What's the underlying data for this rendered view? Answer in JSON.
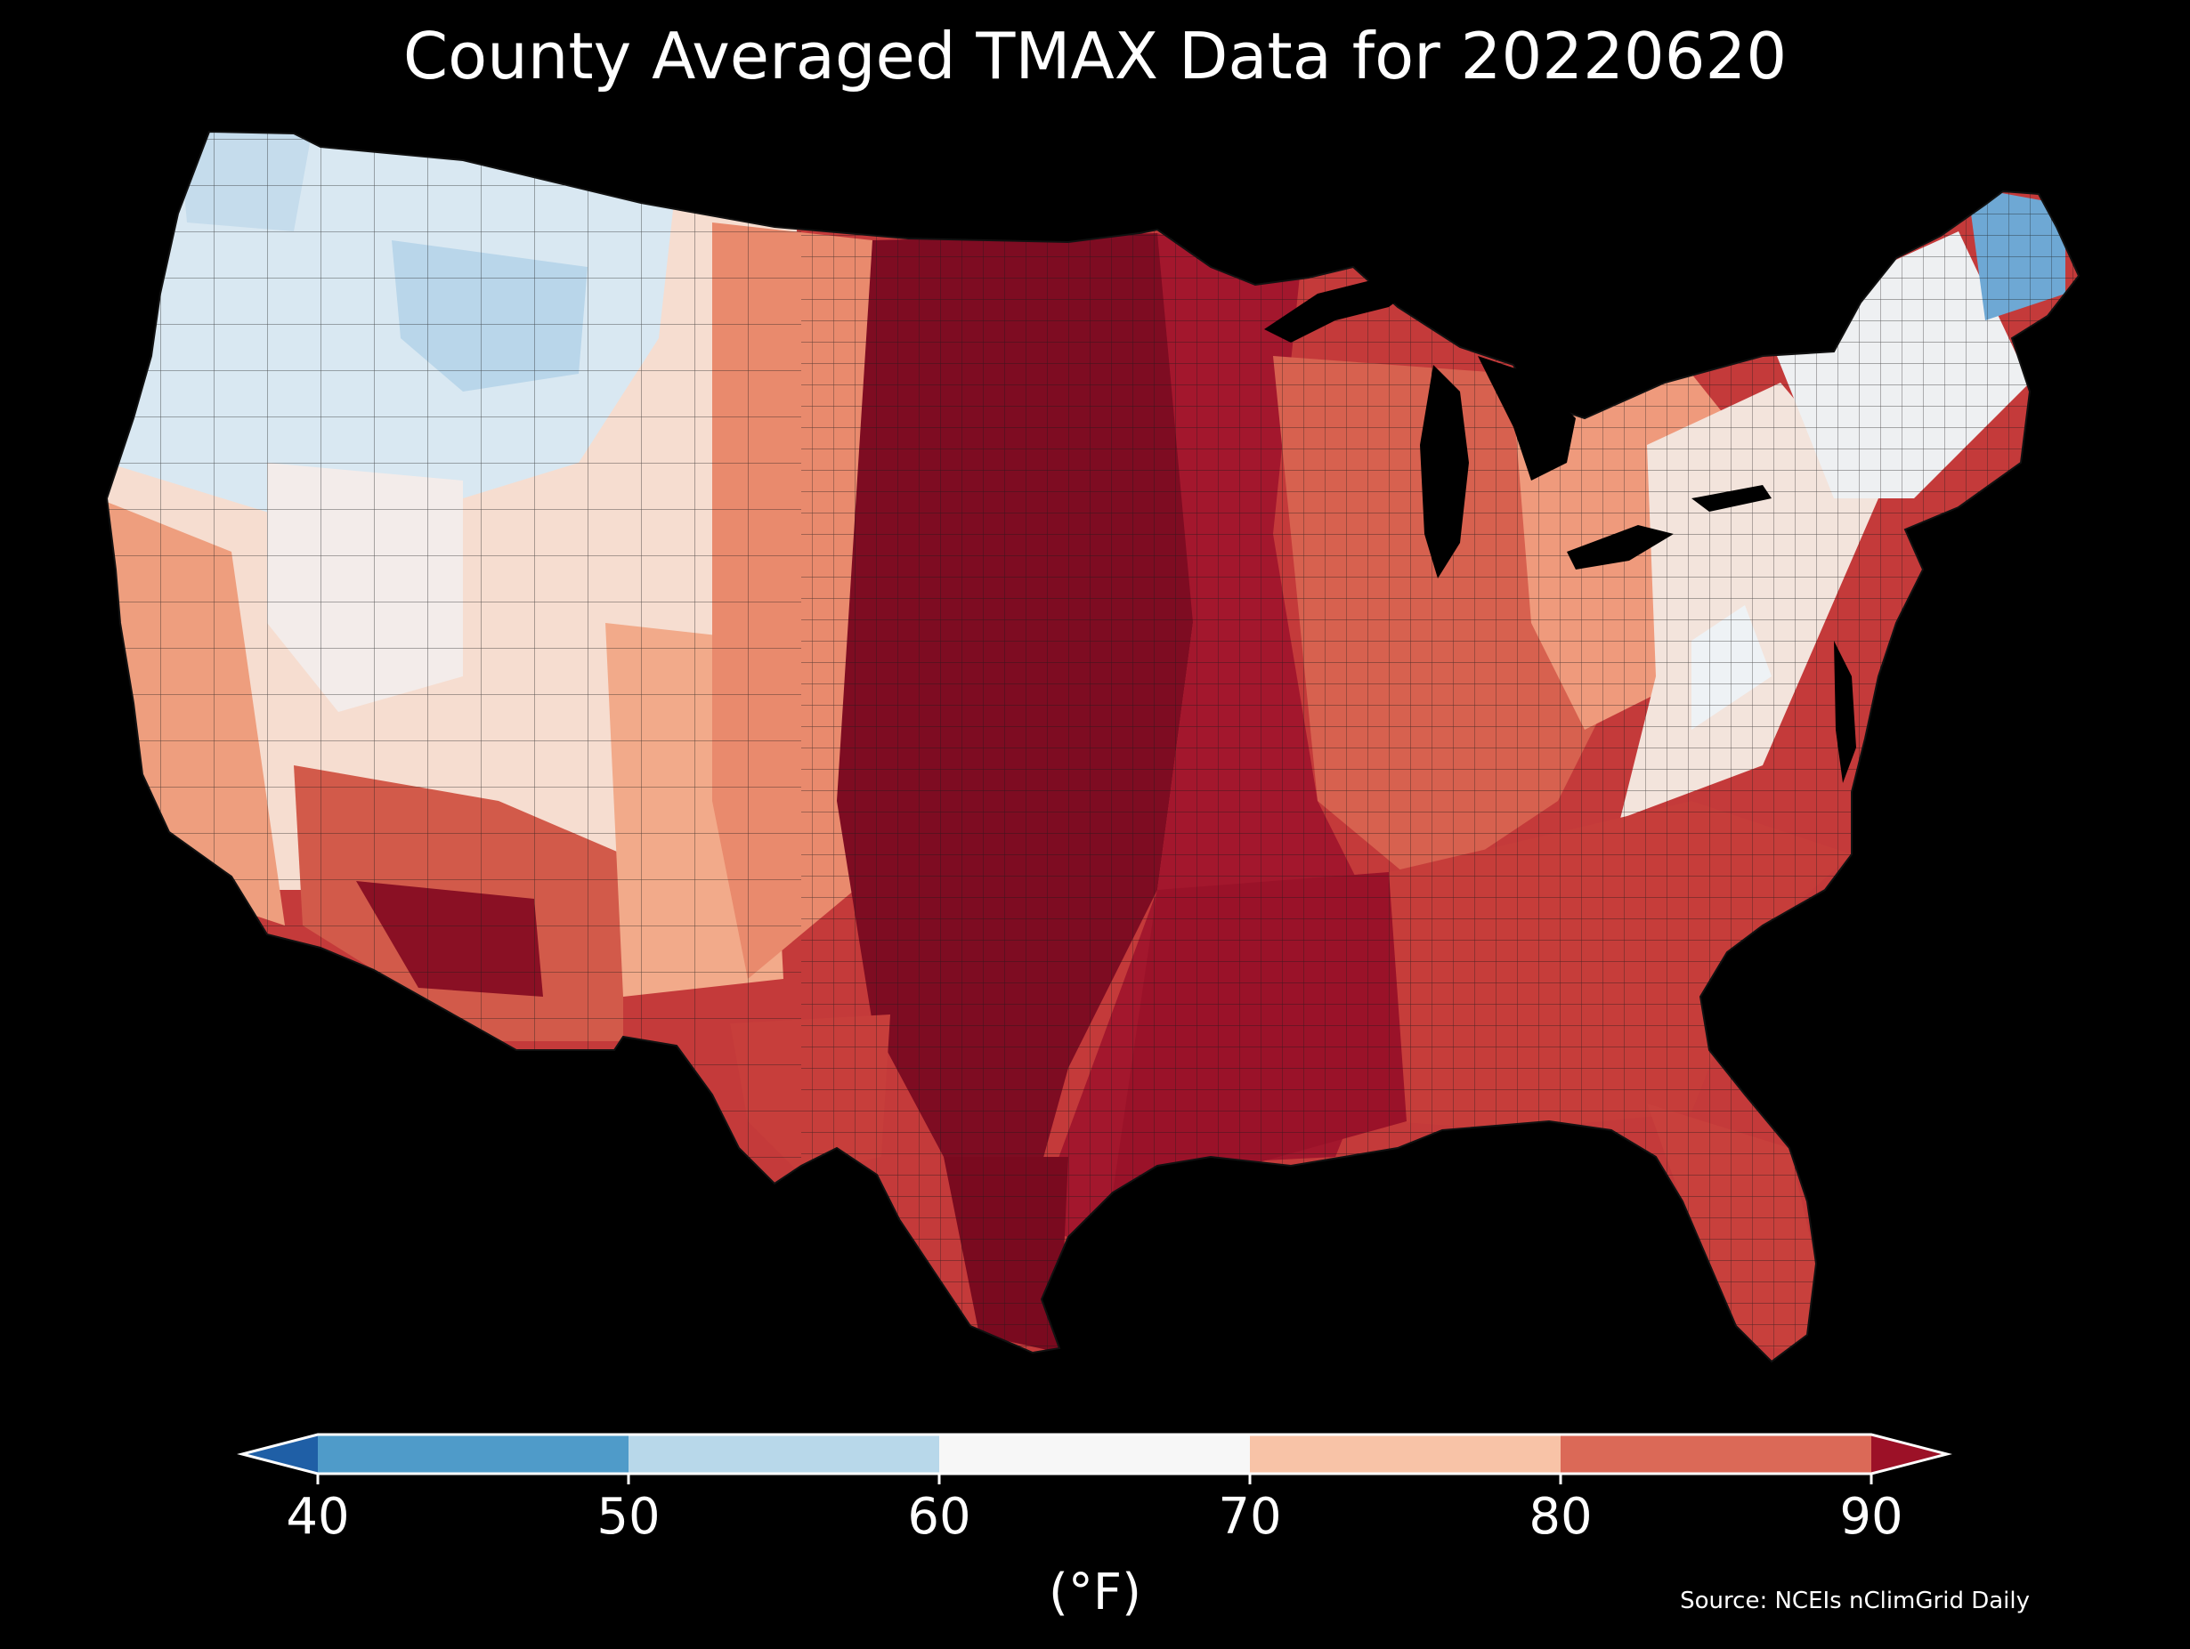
{
  "title": "County Averaged TMAX Data for 20220620",
  "colorbar": {
    "unit_label": "(°F)",
    "tick_labels": [
      "40",
      "50",
      "60",
      "70",
      "80",
      "90"
    ],
    "bands": [
      {
        "from": 40,
        "to": 50,
        "color": "#4f9bc9"
      },
      {
        "from": 50,
        "to": 60,
        "color": "#b8d8ea"
      },
      {
        "from": 60,
        "to": 70,
        "color": "#f7f7f7"
      },
      {
        "from": 70,
        "to": 80,
        "color": "#f8c3a7"
      },
      {
        "from": 80,
        "to": 90,
        "color": "#db6957"
      }
    ],
    "under_color": "#1f5fa6",
    "over_color": "#9c1127",
    "outline_color": "#ffffff"
  },
  "source_note": "Source: NCEIs nClimGrid Daily",
  "map_colors": {
    "background": "#000000",
    "county_border": "#1a1a1a",
    "hottest": "#7a0a1f",
    "very_hot": "#a3152b",
    "hot": "#cf4a3e",
    "warm": "#ef9b7c",
    "mild": "#f8d5c4",
    "neutral": "#f2f2f2",
    "cool": "#cfe3f0",
    "cold": "#8fbfdf",
    "coldest": "#4f8fc2"
  }
}
